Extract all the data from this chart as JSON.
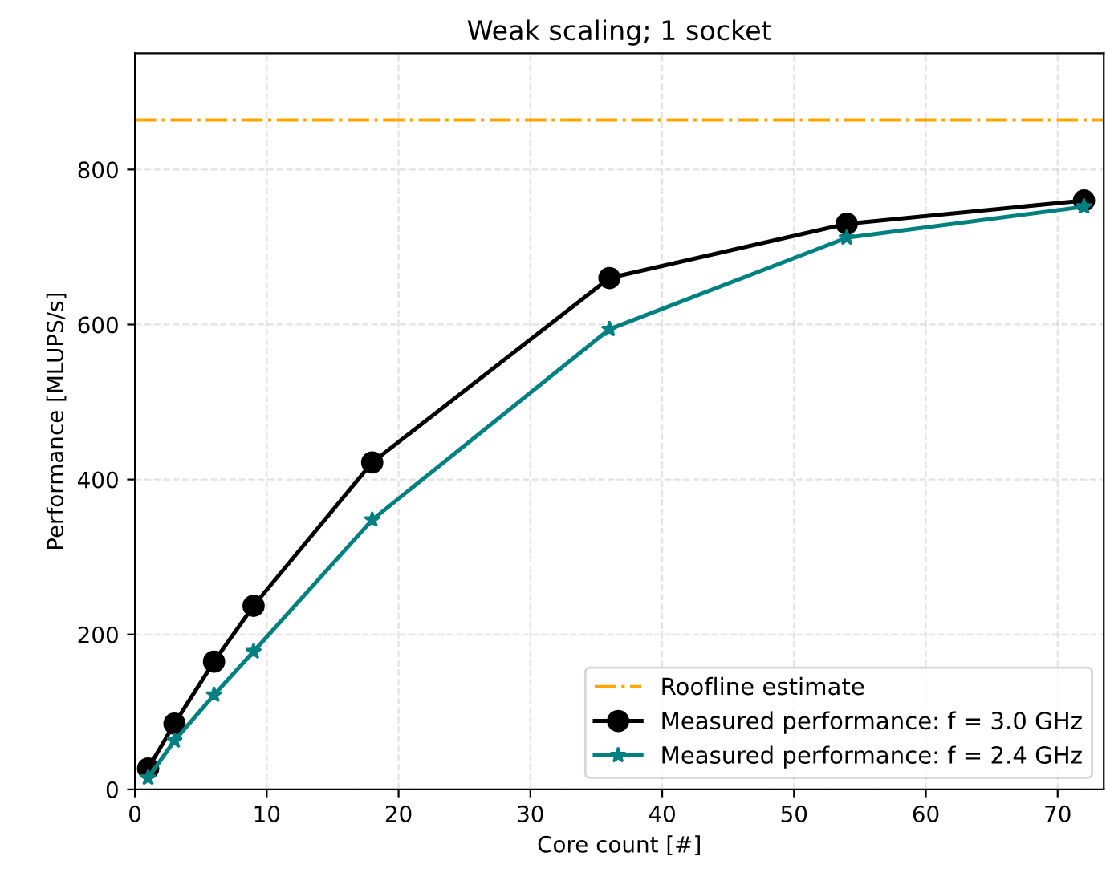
{
  "chart_data": {
    "type": "line",
    "title": "Weak scaling; 1 socket",
    "xlabel": "Core count [#]",
    "ylabel": "Performance [MLUPS/s]",
    "x": [
      1,
      3,
      6,
      9,
      18,
      36,
      54,
      72
    ],
    "series": [
      {
        "name": "Measured performance: f = 3.0 GHz",
        "color": "#000000",
        "marker": "circle",
        "values": [
          27,
          85,
          165,
          237,
          422,
          660,
          730,
          760
        ]
      },
      {
        "name": "Measured performance: f = 2.4 GHz",
        "color": "#008080",
        "marker": "star",
        "values": [
          15,
          63,
          122,
          178,
          348,
          594,
          712,
          752
        ]
      }
    ],
    "ref_lines": [
      {
        "axis": "y",
        "value": 864,
        "label": "Roofline estimate",
        "color": "#ffa500",
        "line_style": "dashdot"
      }
    ],
    "xlim": [
      0,
      73.5
    ],
    "ylim": [
      0,
      950
    ],
    "xticks": [
      0,
      10,
      20,
      30,
      40,
      50,
      60,
      70
    ],
    "yticks": [
      0,
      200,
      400,
      600,
      800
    ],
    "grid": true,
    "legend": "bottom right",
    "line_style": "solid"
  }
}
